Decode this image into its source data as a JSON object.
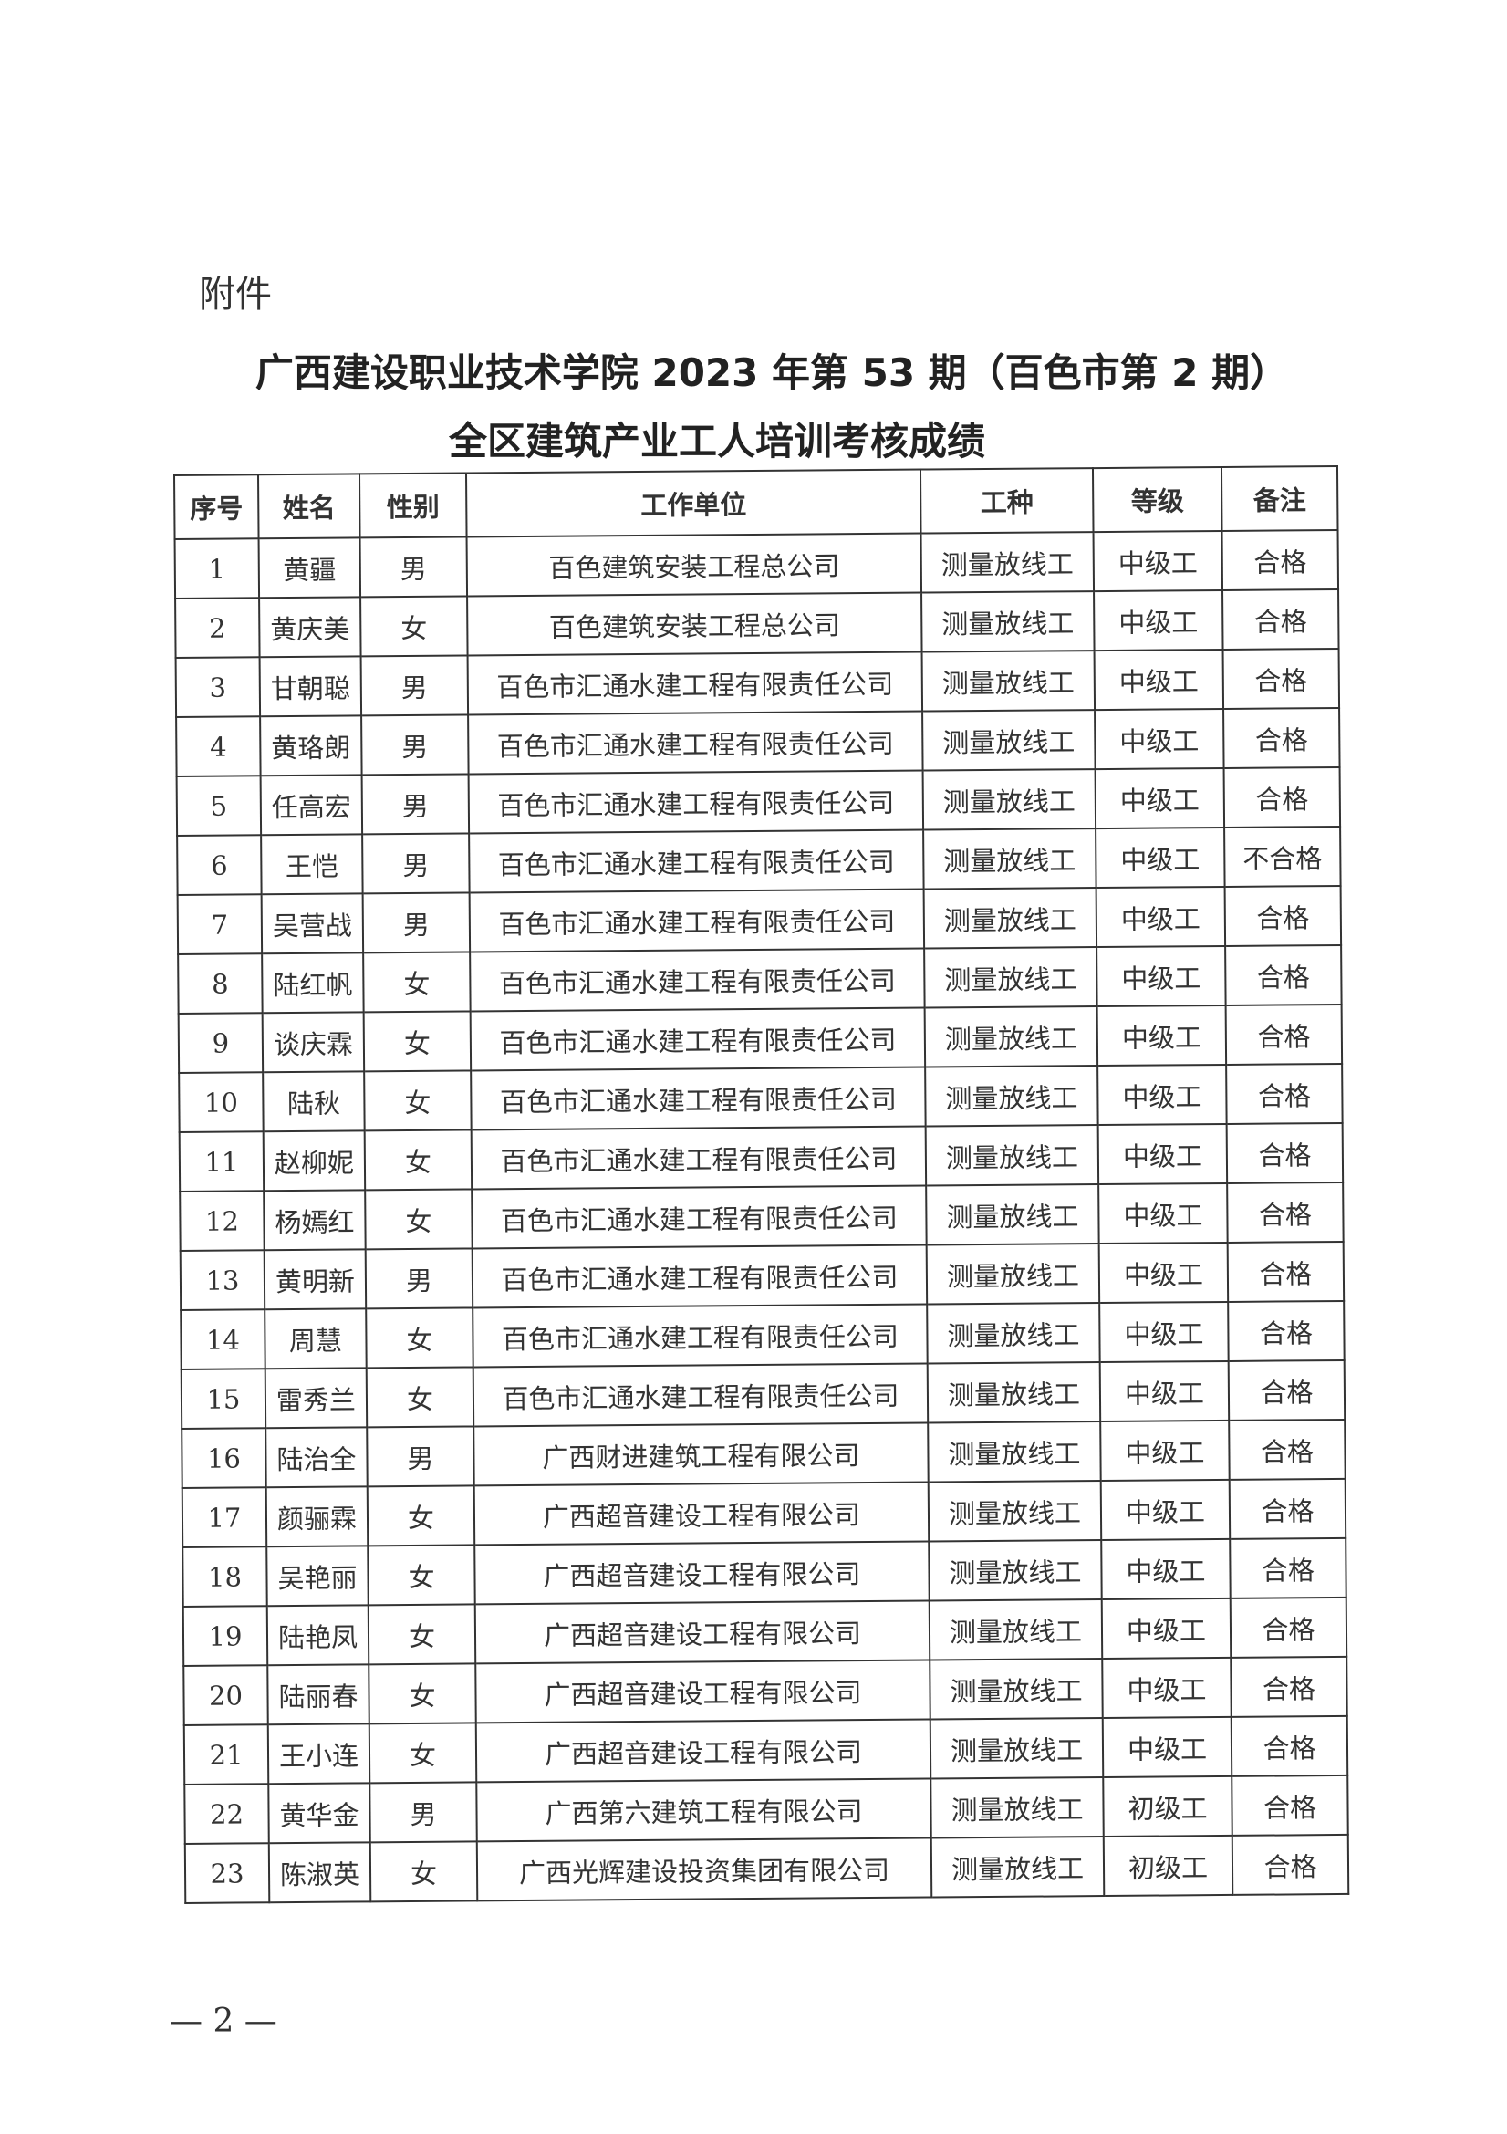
{
  "attachment_label": "附件",
  "title_line1": "广西建设职业技术学院 2023 年第 53 期（百色市第 2 期）",
  "title_line2": "全区建筑产业工人培训考核成绩",
  "table": {
    "headers": [
      "序号",
      "姓名",
      "性别",
      "工作单位",
      "工种",
      "等级",
      "备注"
    ],
    "rows": [
      [
        "1",
        "黄疆",
        "男",
        "百色建筑安装工程总公司",
        "测量放线工",
        "中级工",
        "合格"
      ],
      [
        "2",
        "黄庆美",
        "女",
        "百色建筑安装工程总公司",
        "测量放线工",
        "中级工",
        "合格"
      ],
      [
        "3",
        "甘朝聪",
        "男",
        "百色市汇通水建工程有限责任公司",
        "测量放线工",
        "中级工",
        "合格"
      ],
      [
        "4",
        "黄珞朗",
        "男",
        "百色市汇通水建工程有限责任公司",
        "测量放线工",
        "中级工",
        "合格"
      ],
      [
        "5",
        "任高宏",
        "男",
        "百色市汇通水建工程有限责任公司",
        "测量放线工",
        "中级工",
        "合格"
      ],
      [
        "6",
        "王恺",
        "男",
        "百色市汇通水建工程有限责任公司",
        "测量放线工",
        "中级工",
        "不合格"
      ],
      [
        "7",
        "吴营战",
        "男",
        "百色市汇通水建工程有限责任公司",
        "测量放线工",
        "中级工",
        "合格"
      ],
      [
        "8",
        "陆红帆",
        "女",
        "百色市汇通水建工程有限责任公司",
        "测量放线工",
        "中级工",
        "合格"
      ],
      [
        "9",
        "谈庆霖",
        "女",
        "百色市汇通水建工程有限责任公司",
        "测量放线工",
        "中级工",
        "合格"
      ],
      [
        "10",
        "陆秋",
        "女",
        "百色市汇通水建工程有限责任公司",
        "测量放线工",
        "中级工",
        "合格"
      ],
      [
        "11",
        "赵柳妮",
        "女",
        "百色市汇通水建工程有限责任公司",
        "测量放线工",
        "中级工",
        "合格"
      ],
      [
        "12",
        "杨嫣红",
        "女",
        "百色市汇通水建工程有限责任公司",
        "测量放线工",
        "中级工",
        "合格"
      ],
      [
        "13",
        "黄明新",
        "男",
        "百色市汇通水建工程有限责任公司",
        "测量放线工",
        "中级工",
        "合格"
      ],
      [
        "14",
        "周慧",
        "女",
        "百色市汇通水建工程有限责任公司",
        "测量放线工",
        "中级工",
        "合格"
      ],
      [
        "15",
        "雷秀兰",
        "女",
        "百色市汇通水建工程有限责任公司",
        "测量放线工",
        "中级工",
        "合格"
      ],
      [
        "16",
        "陆治全",
        "男",
        "广西财进建筑工程有限公司",
        "测量放线工",
        "中级工",
        "合格"
      ],
      [
        "17",
        "颜骊霖",
        "女",
        "广西超音建设工程有限公司",
        "测量放线工",
        "中级工",
        "合格"
      ],
      [
        "18",
        "吴艳丽",
        "女",
        "广西超音建设工程有限公司",
        "测量放线工",
        "中级工",
        "合格"
      ],
      [
        "19",
        "陆艳凤",
        "女",
        "广西超音建设工程有限公司",
        "测量放线工",
        "中级工",
        "合格"
      ],
      [
        "20",
        "陆丽春",
        "女",
        "广西超音建设工程有限公司",
        "测量放线工",
        "中级工",
        "合格"
      ],
      [
        "21",
        "王小连",
        "女",
        "广西超音建设工程有限公司",
        "测量放线工",
        "中级工",
        "合格"
      ],
      [
        "22",
        "黄华金",
        "男",
        "广西第六建筑工程有限公司",
        "测量放线工",
        "初级工",
        "合格"
      ],
      [
        "23",
        "陈淑英",
        "女",
        "广西光辉建设投资集团有限公司",
        "测量放线工",
        "初级工",
        "合格"
      ]
    ]
  },
  "page_number": "— 2 —"
}
